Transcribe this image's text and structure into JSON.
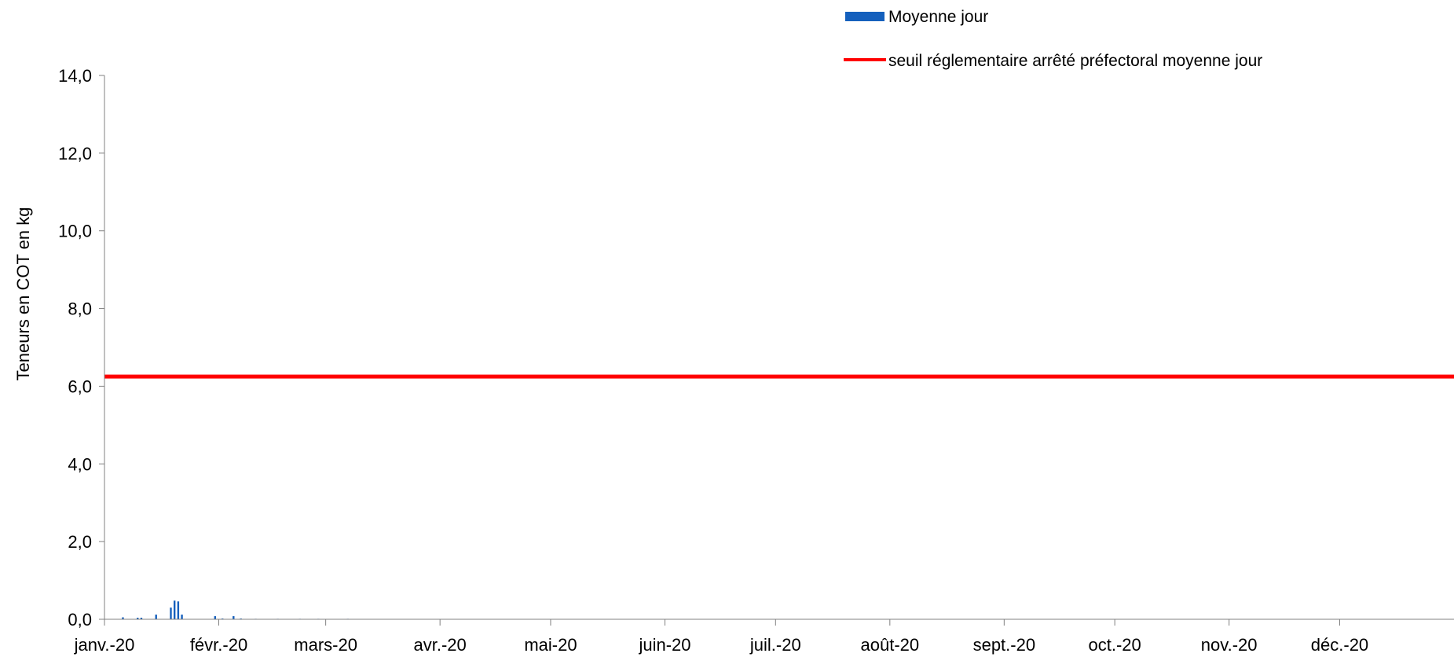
{
  "chart_data": {
    "type": "bar",
    "ylabel": "Teneurs en COT en kg",
    "xlabel": "",
    "ylim": [
      0,
      14
    ],
    "y_ticks": [
      0,
      2,
      4,
      6,
      8,
      10,
      12,
      14
    ],
    "y_tick_labels": [
      "0,0",
      "2,0",
      "4,0",
      "6,0",
      "8,0",
      "10,0",
      "12,0",
      "14,0"
    ],
    "x_range": [
      "2020-01-01",
      "2020-12-31"
    ],
    "x_ticks": [
      "2020-01-01",
      "2020-02-01",
      "2020-03-01",
      "2020-04-01",
      "2020-05-01",
      "2020-06-01",
      "2020-07-01",
      "2020-08-01",
      "2020-09-01",
      "2020-10-01",
      "2020-11-01",
      "2020-12-01"
    ],
    "x_tick_labels": [
      "janv.-20",
      "févr.-20",
      "mars-20",
      "avr.-20",
      "mai-20",
      "juin-20",
      "juil.-20",
      "août-20",
      "sept.-20",
      "oct.-20",
      "nov.-20",
      "déc.-20"
    ],
    "grid": false,
    "legend_position": "top-right",
    "colors": {
      "bars": "#1560BD",
      "threshold": "#FF0000"
    },
    "series": [
      {
        "name": "Moyenne jour",
        "type": "bar",
        "points": [
          [
            "2020-01-06",
            0.05
          ],
          [
            "2020-01-10",
            0.04
          ],
          [
            "2020-01-11",
            0.04
          ],
          [
            "2020-01-15",
            0.12
          ],
          [
            "2020-01-19",
            0.3
          ],
          [
            "2020-01-20",
            0.48
          ],
          [
            "2020-01-21",
            0.46
          ],
          [
            "2020-01-22",
            0.12
          ],
          [
            "2020-01-31",
            0.08
          ],
          [
            "2020-02-02",
            0.02
          ],
          [
            "2020-02-05",
            0.08
          ],
          [
            "2020-02-07",
            0.02
          ],
          [
            "2020-02-11",
            0.01
          ],
          [
            "2020-02-17",
            0.01
          ],
          [
            "2020-02-23",
            0.01
          ],
          [
            "2020-02-28",
            0.01
          ],
          [
            "2020-03-07",
            0.01
          ]
        ]
      },
      {
        "name": "seuil réglementaire arrêté préfectoral moyenne jour",
        "type": "line",
        "value": 6.25
      }
    ]
  }
}
